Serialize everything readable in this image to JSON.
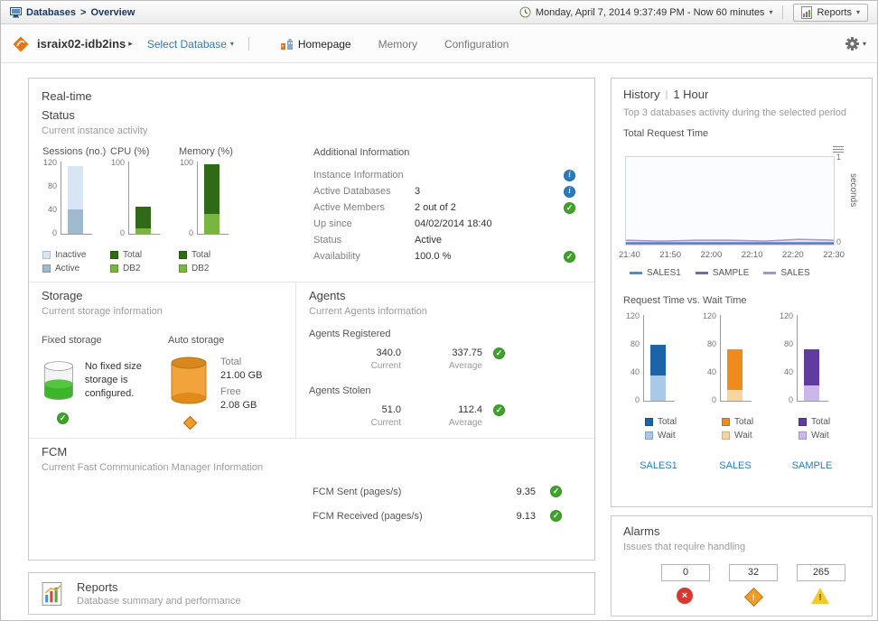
{
  "icons": {
    "caret_down": "▾",
    "arrow_right": "▸",
    "check": "✓",
    "close": "×",
    "exclamation": "!",
    "info_glyph": "i"
  },
  "colors": {
    "ok": "#3fa32a",
    "info": "#2b7bbf",
    "link": "#2e7cb5",
    "critical": "#d8382e",
    "major": "#ef9c28",
    "warning": "#f5c82e"
  },
  "topbar": {
    "breadcrumb": {
      "section": "Databases",
      "separator": ">",
      "page": "Overview"
    },
    "time_range": "Monday, April 7, 2014 9:37:49 PM - Now 60 minutes",
    "reports_label": "Reports"
  },
  "toolbar": {
    "instance": "israix02-idb2ins",
    "select_database": "Select Database",
    "tabs": [
      {
        "label": "Homepage"
      },
      {
        "label": "Memory"
      },
      {
        "label": "Configuration"
      }
    ]
  },
  "realtime": {
    "title": "Real-time",
    "status": {
      "title": "Status",
      "subtitle": "Current instance activity"
    },
    "charts": [
      {
        "title": "Sessions (no.)",
        "type": "bar",
        "max": 120,
        "ticks": [
          "120",
          "80",
          "40",
          "0"
        ],
        "segments": [
          {
            "label": "Active",
            "color": "#9fb9d0",
            "value": 40
          },
          {
            "label": "Inactive",
            "color": "#d7e6f4",
            "value": 72
          }
        ],
        "legend": [
          {
            "label": "Inactive",
            "color": "#d7e6f4"
          },
          {
            "label": "Active",
            "color": "#9fb9d0"
          }
        ]
      },
      {
        "title": "CPU (%)",
        "type": "bar",
        "max": 100,
        "ticks": [
          "100",
          "0"
        ],
        "segments": [
          {
            "label": "DB2",
            "color": "#7ab53e",
            "value": 8
          },
          {
            "label": "Total",
            "color": "#2f6b16",
            "value": 30
          }
        ],
        "legend": [
          {
            "label": "Total",
            "color": "#2f6b16"
          },
          {
            "label": "DB2",
            "color": "#7ab53e"
          }
        ]
      },
      {
        "title": "Memory (%)",
        "type": "bar",
        "max": 100,
        "ticks": [
          "100",
          "0"
        ],
        "segments": [
          {
            "label": "DB2",
            "color": "#7ab53e",
            "value": 28
          },
          {
            "label": "Total",
            "color": "#2f6b16",
            "value": 68
          }
        ],
        "legend": [
          {
            "label": "Total",
            "color": "#2f6b16"
          },
          {
            "label": "DB2",
            "color": "#7ab53e"
          }
        ]
      }
    ],
    "additional_info": {
      "title": "Additional Information",
      "rows": [
        {
          "label": "Instance Information",
          "value": "",
          "icon": "info"
        },
        {
          "label": "Active Databases",
          "value": "3",
          "icon": "info"
        },
        {
          "label": "Active Members",
          "value": "2 out of 2",
          "icon": "ok"
        },
        {
          "label": "Up since",
          "value": "04/02/2014 18:40",
          "icon": ""
        },
        {
          "label": "Status",
          "value": "Active",
          "icon": ""
        },
        {
          "label": "Availability",
          "value": "100.0 %",
          "icon": "ok"
        }
      ]
    },
    "storage": {
      "title": "Storage",
      "subtitle": "Current storage information",
      "fixed": {
        "label": "Fixed storage",
        "message": "No fixed size storage is configured."
      },
      "auto": {
        "label": "Auto storage",
        "total_label": "Total",
        "total_value": "21.00 GB",
        "free_label": "Free",
        "free_value": "2.08 GB"
      }
    },
    "agents": {
      "title": "Agents",
      "subtitle": "Current Agents information",
      "registered": {
        "label": "Agents Registered",
        "current": "340.0",
        "current_label": "Current",
        "average": "337.75",
        "average_label": "Average"
      },
      "stolen": {
        "label": "Agents Stolen",
        "current": "51.0",
        "current_label": "Current",
        "average": "112.4",
        "average_label": "Average"
      }
    },
    "fcm": {
      "title": "FCM",
      "subtitle": "Current Fast Communication Manager Information",
      "rows": [
        {
          "label": "FCM Sent (pages/s)",
          "value": "9.35",
          "icon": "ok"
        },
        {
          "label": "FCM Received (pages/s)",
          "value": "9.13",
          "icon": "ok"
        }
      ]
    }
  },
  "reports_panel": {
    "title": "Reports",
    "subtitle": "Database summary and performance"
  },
  "history": {
    "title": "History",
    "separator": "|",
    "range": "1 Hour",
    "subtitle": "Top 3 databases activity during the selected period",
    "line_chart": {
      "title": "Total Request Time",
      "type": "line",
      "ylabel": "seconds",
      "ymax": 1,
      "yticks": [
        "1",
        "0"
      ],
      "x_labels": [
        "21:40",
        "21:50",
        "22:00",
        "22:10",
        "22:20",
        "22:30"
      ],
      "series": [
        {
          "name": "SALES1",
          "color": "#4a90c8",
          "values": [
            0.02,
            0.02,
            0.02,
            0.02,
            0.02,
            0.02,
            0.02
          ]
        },
        {
          "name": "SAMPLE",
          "color": "#7568a8",
          "values": [
            0.01,
            0.01,
            0.01,
            0.01,
            0.01,
            0.01,
            0.01
          ]
        },
        {
          "name": "SALES",
          "color": "#a794cc",
          "values": [
            0.05,
            0.04,
            0.05,
            0.05,
            0.04,
            0.06,
            0.05
          ],
          "area": true,
          "area_color": "#e9e2f5"
        }
      ]
    },
    "bars_title": "Request Time vs. Wait Time",
    "bar_charts": [
      {
        "name": "SALES1",
        "type": "bar",
        "max": 120,
        "ticks": [
          "120",
          "80",
          "40",
          "0"
        ],
        "segments": [
          {
            "label": "Wait",
            "color": "#a9c9e8",
            "value": 35
          },
          {
            "label": "Total",
            "color": "#1b64a8",
            "value": 43
          }
        ],
        "legend": [
          {
            "label": "Total",
            "color": "#1b64a8"
          },
          {
            "label": "Wait",
            "color": "#a9c9e8"
          }
        ]
      },
      {
        "name": "SALES",
        "type": "bar",
        "max": 120,
        "ticks": [
          "120",
          "80",
          "40",
          "0"
        ],
        "segments": [
          {
            "label": "Wait",
            "color": "#f9d49c",
            "value": 15
          },
          {
            "label": "Total",
            "color": "#ef8a1c",
            "value": 57
          }
        ],
        "legend": [
          {
            "label": "Total",
            "color": "#ef8a1c"
          },
          {
            "label": "Wait",
            "color": "#f9d49c"
          }
        ]
      },
      {
        "name": "SAMPLE",
        "type": "bar",
        "max": 120,
        "ticks": [
          "120",
          "80",
          "40",
          "0"
        ],
        "segments": [
          {
            "label": "Wait",
            "color": "#cbb8ea",
            "value": 22
          },
          {
            "label": "Total",
            "color": "#5f3c9e",
            "value": 50
          }
        ],
        "legend": [
          {
            "label": "Total",
            "color": "#5f3c9e"
          },
          {
            "label": "Wait",
            "color": "#cbb8ea"
          }
        ]
      }
    ]
  },
  "alarms": {
    "title": "Alarms",
    "subtitle": "Issues that require handling",
    "items": [
      {
        "count": "0",
        "severity": "critical"
      },
      {
        "count": "32",
        "severity": "major"
      },
      {
        "count": "265",
        "severity": "warning"
      }
    ]
  }
}
